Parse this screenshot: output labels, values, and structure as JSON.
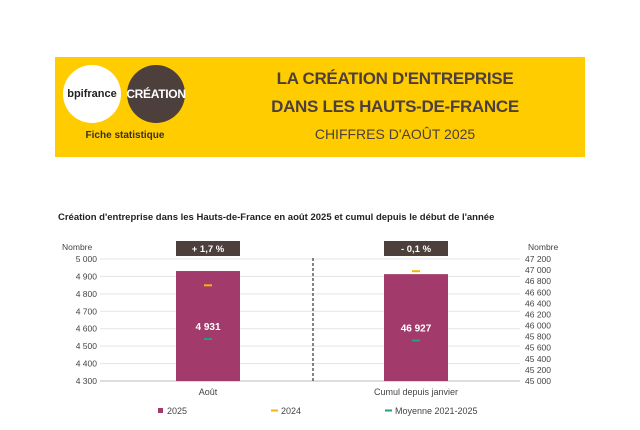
{
  "header": {
    "logo_left": "bpifrance",
    "logo_right": "CRÉATION",
    "subtitle_left": "Fiche statistique",
    "title_line1": "LA CRÉATION D'ENTREPRISE",
    "title_line2": "DANS LES HAUTS-DE-FRANCE",
    "title_line3": "CHIFFRES D'AOÛT 2025",
    "color_banner": "#ffcc00",
    "color_brown": "#4d3f3c"
  },
  "chart_data": {
    "type": "bar",
    "title": "Création d'entreprise dans les Hauts-de-France  en août 2025 et cumul depuis le début de l'année",
    "left_axis": {
      "label": "Nombre",
      "range": [
        4300,
        5000
      ],
      "ticks": [
        "5 000",
        "4 900",
        "4 800",
        "4 700",
        "4 600",
        "4 500",
        "4 400",
        "4 300"
      ]
    },
    "right_axis": {
      "label": "Nombre",
      "range": [
        45000,
        47200
      ],
      "ticks": [
        "47 200",
        "47 000",
        "46 800",
        "46 600",
        "46 400",
        "46 200",
        "46 000",
        "45 800",
        "45 600",
        "45 400",
        "45 200",
        "45 000"
      ]
    },
    "categories": [
      "Août",
      "Cumul depuis janvier"
    ],
    "series": [
      {
        "name": "2025",
        "values": [
          4931,
          46927
        ],
        "labels": [
          "4 931",
          "46 927"
        ],
        "color": "#a23b6c",
        "style": "bar"
      },
      {
        "name": "2024",
        "values": [
          4849,
          46980
        ],
        "color": "#f5b800",
        "style": "marker"
      },
      {
        "name": "Moyenne 2021-2025",
        "values": [
          4541,
          45730
        ],
        "color": "#2a9d7c",
        "style": "marker"
      }
    ],
    "badges": [
      "+ 1,7 %",
      "- 0,1 %"
    ],
    "grid": true,
    "legend_position": "bottom"
  }
}
